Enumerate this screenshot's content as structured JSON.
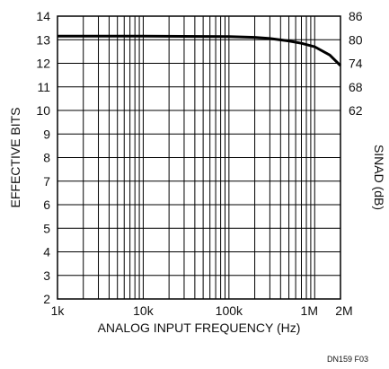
{
  "chart_data": {
    "type": "line",
    "title": "",
    "xlabel": "ANALOG INPUT FREQUENCY (Hz)",
    "ylabel": "EFFECTIVE BITS",
    "y2label": "SINAD (dB)",
    "xscale": "log",
    "xlim": [
      1000,
      2000000
    ],
    "ylim": [
      2,
      14
    ],
    "grid": true,
    "x_tick_values": [
      1000,
      10000,
      100000,
      1000000,
      2000000
    ],
    "x_tick_labels": [
      "1k",
      "10k",
      "100k",
      "1M",
      "2M"
    ],
    "y_tick_labels": [
      "2",
      "3",
      "4",
      "5",
      "6",
      "7",
      "8",
      "9",
      "10",
      "11",
      "12",
      "13",
      "14"
    ],
    "y2_ticks": [
      {
        "label": "62",
        "at_bits": 10
      },
      {
        "label": "68",
        "at_bits": 11
      },
      {
        "label": "74",
        "at_bits": 12
      },
      {
        "label": "80",
        "at_bits": 13
      },
      {
        "label": "86",
        "at_bits": 14
      }
    ],
    "series": [
      {
        "x": [
          1000,
          10000,
          50000,
          100000,
          200000,
          300000,
          500000,
          700000,
          1000000,
          1500000,
          2000000
        ],
        "y": [
          13.15,
          13.15,
          13.14,
          13.13,
          13.1,
          13.05,
          12.95,
          12.85,
          12.7,
          12.35,
          11.9
        ]
      }
    ]
  },
  "figure_code": "DN159 F03",
  "colors": {
    "grid": "#000000",
    "line": "#000000",
    "text": "#111111"
  }
}
